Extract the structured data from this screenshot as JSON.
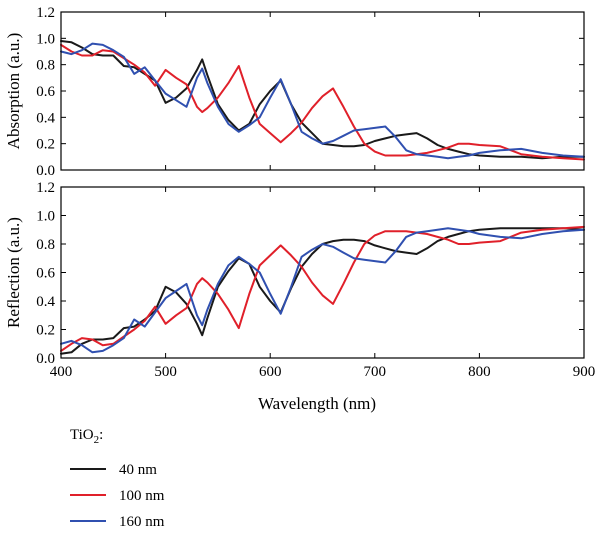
{
  "colors": {
    "series_40": "#1a1a1a",
    "series_100": "#e0202a",
    "series_160": "#3050b0"
  },
  "legend": {
    "title_main": "TiO",
    "title_sub": "2",
    "title_suffix": ":",
    "items": [
      "40 nm",
      "100 nm",
      "160 nm"
    ],
    "placement": "below"
  },
  "chart_data": [
    {
      "type": "line",
      "panel": "top",
      "xlabel": "Wavelength (nm)",
      "ylabel": "Absorption (a.u.)",
      "xlim": [
        400,
        900
      ],
      "ylim": [
        0.0,
        1.2
      ],
      "xticks": [
        400,
        500,
        600,
        700,
        800,
        900
      ],
      "yticks": [
        "0.0",
        "0.2",
        "0.4",
        "0.6",
        "0.8",
        "1.0",
        "1.2"
      ],
      "series": [
        {
          "name": "40 nm",
          "x": [
            400,
            410,
            420,
            430,
            440,
            450,
            460,
            470,
            480,
            490,
            500,
            510,
            520,
            530,
            535,
            540,
            550,
            560,
            570,
            580,
            590,
            600,
            610,
            620,
            630,
            640,
            650,
            660,
            670,
            680,
            690,
            700,
            710,
            720,
            730,
            740,
            750,
            760,
            770,
            780,
            790,
            800,
            820,
            840,
            860,
            880,
            900
          ],
          "y": [
            0.98,
            0.97,
            0.93,
            0.88,
            0.87,
            0.87,
            0.79,
            0.78,
            0.73,
            0.68,
            0.51,
            0.55,
            0.62,
            0.76,
            0.84,
            0.72,
            0.5,
            0.38,
            0.3,
            0.35,
            0.5,
            0.6,
            0.68,
            0.5,
            0.36,
            0.28,
            0.2,
            0.19,
            0.18,
            0.18,
            0.19,
            0.22,
            0.24,
            0.26,
            0.27,
            0.28,
            0.24,
            0.19,
            0.16,
            0.14,
            0.12,
            0.11,
            0.1,
            0.1,
            0.09,
            0.1,
            0.1
          ]
        },
        {
          "name": "100 nm",
          "x": [
            400,
            410,
            420,
            430,
            440,
            450,
            460,
            470,
            480,
            490,
            500,
            510,
            520,
            530,
            535,
            540,
            550,
            560,
            570,
            580,
            590,
            600,
            610,
            620,
            630,
            640,
            650,
            660,
            670,
            680,
            690,
            700,
            710,
            720,
            730,
            740,
            750,
            760,
            770,
            780,
            790,
            800,
            820,
            840,
            860,
            880,
            900
          ],
          "y": [
            0.95,
            0.9,
            0.87,
            0.87,
            0.91,
            0.9,
            0.85,
            0.8,
            0.74,
            0.64,
            0.76,
            0.7,
            0.65,
            0.48,
            0.44,
            0.47,
            0.55,
            0.66,
            0.79,
            0.55,
            0.35,
            0.28,
            0.21,
            0.28,
            0.36,
            0.47,
            0.56,
            0.62,
            0.48,
            0.33,
            0.2,
            0.14,
            0.11,
            0.11,
            0.11,
            0.12,
            0.13,
            0.15,
            0.17,
            0.2,
            0.2,
            0.19,
            0.18,
            0.12,
            0.1,
            0.09,
            0.08
          ]
        },
        {
          "name": "160 nm",
          "x": [
            400,
            410,
            420,
            430,
            440,
            450,
            460,
            470,
            480,
            490,
            500,
            510,
            520,
            530,
            535,
            540,
            550,
            560,
            570,
            580,
            590,
            600,
            610,
            620,
            630,
            640,
            650,
            660,
            670,
            680,
            690,
            700,
            710,
            720,
            730,
            740,
            750,
            760,
            770,
            780,
            790,
            800,
            820,
            840,
            860,
            880,
            900
          ],
          "y": [
            0.9,
            0.88,
            0.91,
            0.96,
            0.95,
            0.91,
            0.86,
            0.73,
            0.78,
            0.68,
            0.58,
            0.53,
            0.48,
            0.7,
            0.77,
            0.66,
            0.48,
            0.35,
            0.29,
            0.34,
            0.4,
            0.55,
            0.69,
            0.5,
            0.29,
            0.24,
            0.2,
            0.22,
            0.26,
            0.3,
            0.31,
            0.32,
            0.33,
            0.25,
            0.15,
            0.12,
            0.11,
            0.1,
            0.09,
            0.1,
            0.11,
            0.13,
            0.15,
            0.16,
            0.13,
            0.11,
            0.1
          ]
        }
      ]
    },
    {
      "type": "line",
      "panel": "bottom",
      "xlabel": "Wavelength (nm)",
      "ylabel": "Reflection (a.u.)",
      "xlim": [
        400,
        900
      ],
      "ylim": [
        0.0,
        1.2
      ],
      "xticks": [
        400,
        500,
        600,
        700,
        800,
        900
      ],
      "yticks": [
        "0.0",
        "0.2",
        "0.4",
        "0.6",
        "0.8",
        "1.0",
        "1.2"
      ],
      "series": [
        {
          "name": "40 nm",
          "x": [
            400,
            410,
            420,
            430,
            440,
            450,
            460,
            470,
            480,
            490,
            500,
            510,
            520,
            530,
            535,
            540,
            550,
            560,
            570,
            580,
            590,
            600,
            610,
            620,
            630,
            640,
            650,
            660,
            670,
            680,
            690,
            700,
            710,
            720,
            730,
            740,
            750,
            760,
            770,
            780,
            790,
            800,
            820,
            840,
            860,
            880,
            900
          ],
          "y": [
            0.03,
            0.04,
            0.1,
            0.13,
            0.13,
            0.14,
            0.21,
            0.22,
            0.27,
            0.33,
            0.5,
            0.46,
            0.38,
            0.24,
            0.16,
            0.28,
            0.5,
            0.61,
            0.7,
            0.66,
            0.5,
            0.4,
            0.32,
            0.49,
            0.64,
            0.73,
            0.8,
            0.82,
            0.83,
            0.83,
            0.82,
            0.79,
            0.77,
            0.75,
            0.74,
            0.73,
            0.77,
            0.82,
            0.85,
            0.87,
            0.89,
            0.9,
            0.91,
            0.91,
            0.91,
            0.91,
            0.9
          ]
        },
        {
          "name": "100 nm",
          "x": [
            400,
            410,
            420,
            430,
            440,
            450,
            460,
            470,
            480,
            490,
            500,
            510,
            520,
            530,
            535,
            540,
            550,
            560,
            570,
            580,
            590,
            600,
            610,
            620,
            630,
            640,
            650,
            660,
            670,
            680,
            690,
            700,
            710,
            720,
            730,
            740,
            750,
            760,
            770,
            780,
            790,
            800,
            820,
            840,
            860,
            880,
            900
          ],
          "y": [
            0.05,
            0.1,
            0.14,
            0.13,
            0.09,
            0.1,
            0.15,
            0.2,
            0.26,
            0.36,
            0.24,
            0.3,
            0.35,
            0.52,
            0.56,
            0.53,
            0.45,
            0.34,
            0.21,
            0.45,
            0.65,
            0.72,
            0.79,
            0.72,
            0.64,
            0.53,
            0.44,
            0.38,
            0.52,
            0.67,
            0.8,
            0.86,
            0.89,
            0.89,
            0.89,
            0.88,
            0.87,
            0.85,
            0.83,
            0.8,
            0.8,
            0.81,
            0.82,
            0.88,
            0.9,
            0.91,
            0.92
          ]
        },
        {
          "name": "160 nm",
          "x": [
            400,
            410,
            420,
            430,
            440,
            450,
            460,
            470,
            480,
            490,
            500,
            510,
            520,
            530,
            535,
            540,
            550,
            560,
            570,
            580,
            590,
            600,
            610,
            620,
            630,
            640,
            650,
            660,
            670,
            680,
            690,
            700,
            710,
            720,
            730,
            740,
            750,
            760,
            770,
            780,
            790,
            800,
            820,
            840,
            860,
            880,
            900
          ],
          "y": [
            0.1,
            0.12,
            0.09,
            0.04,
            0.05,
            0.09,
            0.14,
            0.27,
            0.22,
            0.32,
            0.42,
            0.47,
            0.52,
            0.3,
            0.23,
            0.34,
            0.52,
            0.65,
            0.71,
            0.66,
            0.6,
            0.45,
            0.31,
            0.5,
            0.71,
            0.76,
            0.8,
            0.78,
            0.74,
            0.7,
            0.69,
            0.68,
            0.67,
            0.75,
            0.85,
            0.88,
            0.89,
            0.9,
            0.91,
            0.9,
            0.89,
            0.87,
            0.85,
            0.84,
            0.87,
            0.89,
            0.9
          ]
        }
      ]
    }
  ]
}
